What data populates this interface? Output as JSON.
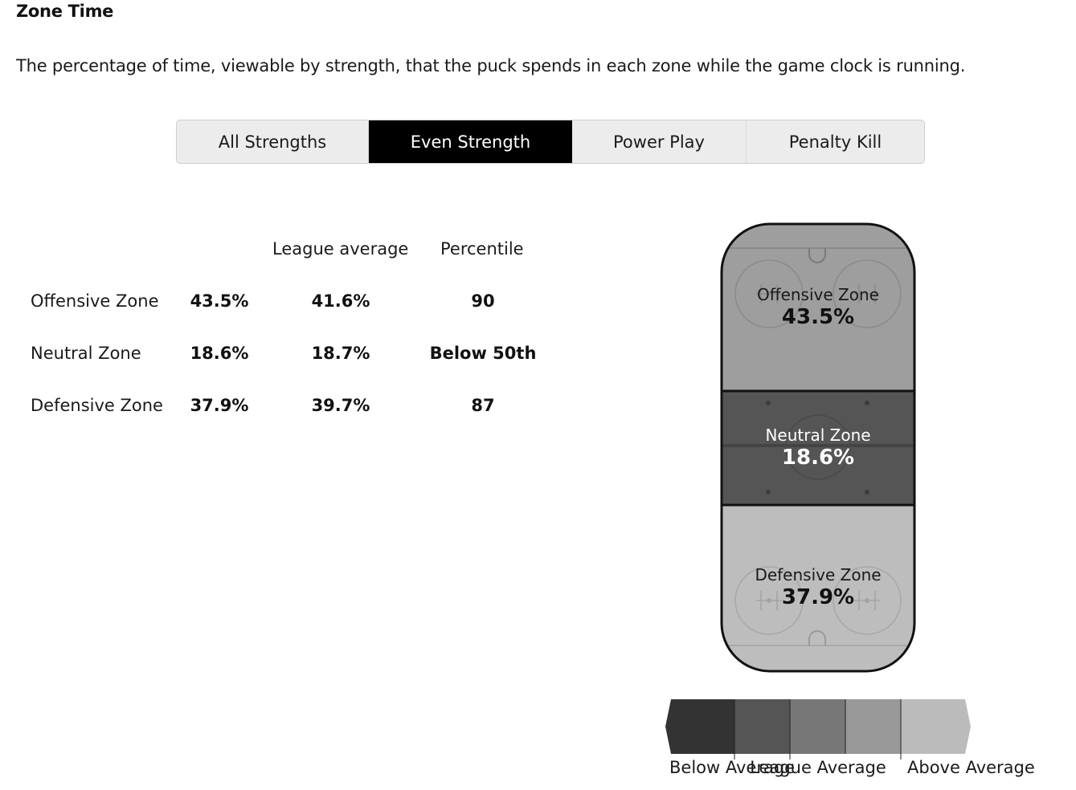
{
  "title": "Zone Time",
  "description": "The percentage of time, viewable by strength, that the puck spends in each zone while the game clock is running.",
  "tabs": [
    {
      "label": "All Strengths",
      "active": false
    },
    {
      "label": "Even Strength",
      "active": true
    },
    {
      "label": "Power Play",
      "active": false
    },
    {
      "label": "Penalty Kill",
      "active": false
    }
  ],
  "table": {
    "headers": {
      "league_average": "League average",
      "percentile": "Percentile"
    },
    "rows": [
      {
        "zone": "Offensive Zone",
        "value": "43.5%",
        "league_average": "41.6%",
        "percentile": "90"
      },
      {
        "zone": "Neutral Zone",
        "value": "18.6%",
        "league_average": "18.7%",
        "percentile": "Below 50th"
      },
      {
        "zone": "Defensive Zone",
        "value": "37.9%",
        "league_average": "39.7%",
        "percentile": "87"
      }
    ]
  },
  "rink": {
    "offensive": {
      "label": "Offensive Zone",
      "value": "43.5%",
      "color": "#9e9e9e"
    },
    "neutral": {
      "label": "Neutral Zone",
      "value": "18.6%",
      "color": "#555555"
    },
    "defensive": {
      "label": "Defensive Zone",
      "value": "37.9%",
      "color": "#bdbdbd"
    }
  },
  "legend": {
    "labels": {
      "below": "Below Average",
      "league": "League Average",
      "above": "Above Average"
    },
    "colors": [
      "#333333",
      "#555555",
      "#777777",
      "#999999",
      "#bbbbbb"
    ]
  }
}
